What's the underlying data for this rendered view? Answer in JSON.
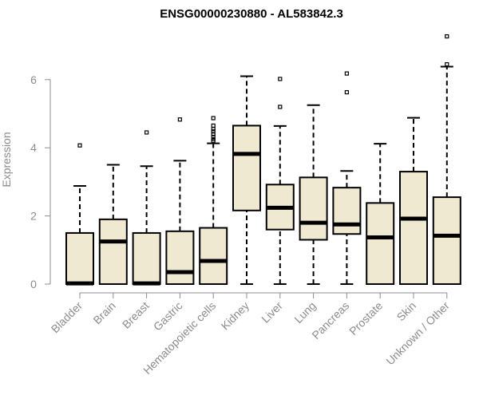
{
  "chart_data": {
    "type": "box",
    "title": "ENSG00000230880 - AL583842.3",
    "xlabel": "",
    "ylabel": "Expression",
    "ylim": [
      0,
      7.4
    ],
    "yticks": [
      0,
      2,
      4,
      6
    ],
    "grid": false,
    "colors": {
      "box_fill": "#efe9d1",
      "box_stroke": "#000000",
      "axis": "#8c8c8c"
    },
    "categories": [
      "Bladder",
      "Brain",
      "Breast",
      "Gastric",
      "Hematopoietic cells",
      "Kidney",
      "Liver",
      "Lung",
      "Pancreas",
      "Prostate",
      "Skin",
      "Unknown / Other"
    ],
    "boxes": [
      {
        "category": "Bladder",
        "whisker_low": 0,
        "q1": 0,
        "median": 0.02,
        "q3": 1.5,
        "whisker_high": 2.88,
        "outliers": [
          4.07
        ]
      },
      {
        "category": "Brain",
        "whisker_low": 0,
        "q1": 0,
        "median": 1.25,
        "q3": 1.9,
        "whisker_high": 3.5,
        "outliers": []
      },
      {
        "category": "Breast",
        "whisker_low": 0,
        "q1": 0,
        "median": 0.02,
        "q3": 1.5,
        "whisker_high": 3.46,
        "outliers": [
          4.45
        ]
      },
      {
        "category": "Gastric",
        "whisker_low": 0,
        "q1": 0,
        "median": 0.35,
        "q3": 1.55,
        "whisker_high": 3.62,
        "outliers": [
          4.83
        ]
      },
      {
        "category": "Hematopoietic cells",
        "whisker_low": 0,
        "q1": 0,
        "median": 0.68,
        "q3": 1.65,
        "whisker_high": 4.13,
        "outliers": [
          4.2,
          4.25,
          4.32,
          4.4,
          4.48,
          4.55,
          4.65,
          4.87
        ]
      },
      {
        "category": "Kidney",
        "whisker_low": 0,
        "q1": 2.16,
        "median": 3.82,
        "q3": 4.65,
        "whisker_high": 6.1,
        "outliers": []
      },
      {
        "category": "Liver",
        "whisker_low": 0,
        "q1": 1.6,
        "median": 2.24,
        "q3": 2.92,
        "whisker_high": 4.64,
        "outliers": [
          5.2,
          6.02
        ]
      },
      {
        "category": "Lung",
        "whisker_low": 0,
        "q1": 1.3,
        "median": 1.8,
        "q3": 3.13,
        "whisker_high": 5.25,
        "outliers": []
      },
      {
        "category": "Pancreas",
        "whisker_low": 0,
        "q1": 1.47,
        "median": 1.75,
        "q3": 2.83,
        "whisker_high": 3.32,
        "outliers": [
          5.63,
          6.18
        ]
      },
      {
        "category": "Prostate",
        "whisker_low": 0,
        "q1": 0,
        "median": 1.37,
        "q3": 2.38,
        "whisker_high": 4.12,
        "outliers": []
      },
      {
        "category": "Skin",
        "whisker_low": 0,
        "q1": 0,
        "median": 1.92,
        "q3": 3.3,
        "whisker_high": 4.88,
        "outliers": []
      },
      {
        "category": "Unknown / Other",
        "whisker_low": 0,
        "q1": 0,
        "median": 1.42,
        "q3": 2.55,
        "whisker_high": 6.38,
        "outliers": [
          6.45,
          7.27
        ]
      }
    ]
  }
}
